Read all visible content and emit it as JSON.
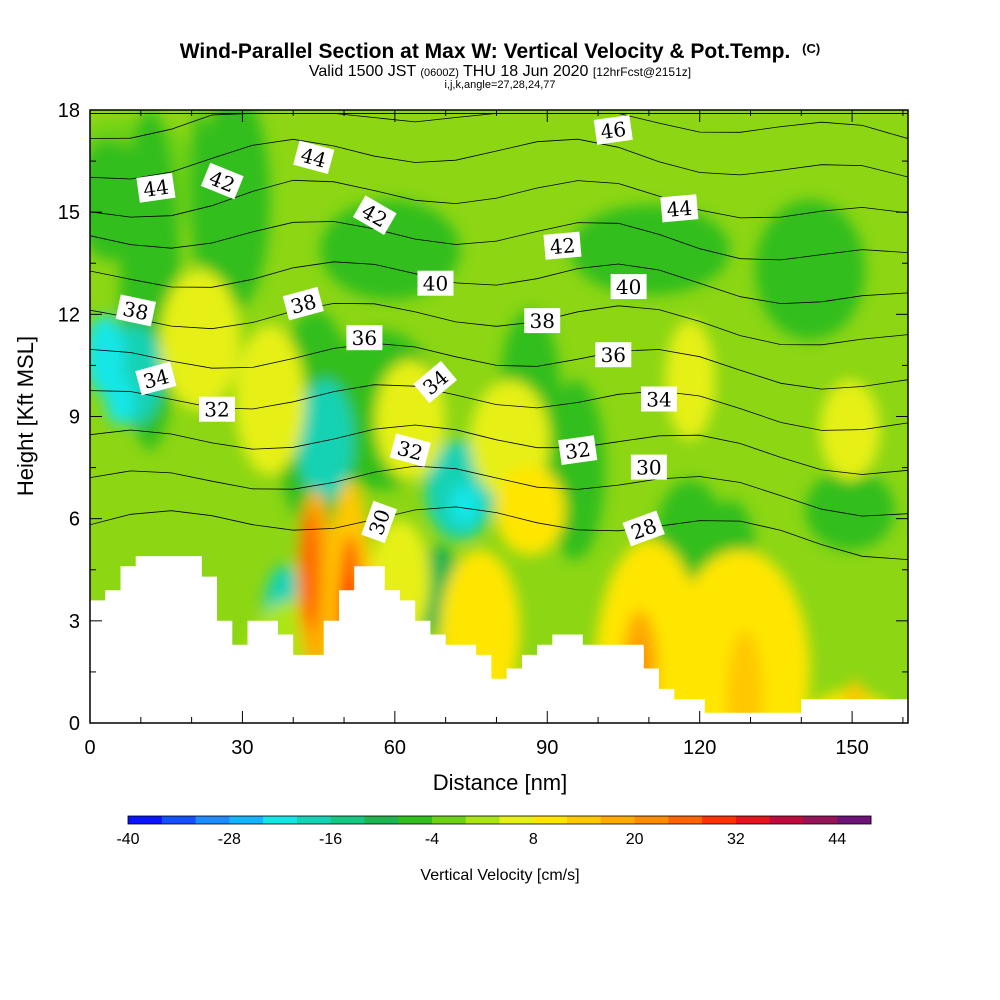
{
  "title": "Wind-Parallel Section at Max W: Vertical Velocity & Pot.Temp.",
  "copyright": "(C)",
  "subtitle": {
    "prefix": "Valid 1500 JST",
    "utc": "(0600Z)",
    "date": "THU 18 Jun 2020",
    "fcst": "[12hrFcst@2151z]",
    "grid": "i,j,k,angle=27,28,24,77"
  },
  "chart_data": {
    "type": "heatmap",
    "title": "Wind-Parallel Section at Max W: Vertical Velocity & Pot.Temp.",
    "xlabel": "Distance [nm]",
    "ylabel": "Height [Kft MSL]",
    "xlim": [
      0,
      161
    ],
    "ylim": [
      0,
      18
    ],
    "x_ticks": [
      0,
      30,
      60,
      90,
      120,
      150
    ],
    "y_ticks": [
      0,
      3,
      6,
      9,
      12,
      15,
      18
    ],
    "colorbar": {
      "label": "Vertical Velocity [cm/s]",
      "min": -40,
      "max": 48,
      "step": 4,
      "tick_values": [
        -40,
        -28,
        -16,
        -4,
        8,
        20,
        32,
        44
      ],
      "colors": [
        "#0a14ff",
        "#1450ff",
        "#1e8cff",
        "#14b4ff",
        "#14e6e6",
        "#14d2b4",
        "#14c882",
        "#1eb450",
        "#32be1e",
        "#6ed214",
        "#aae614",
        "#e6f014",
        "#ffe600",
        "#ffc800",
        "#ffaa00",
        "#ff8c00",
        "#ff6400",
        "#ff3200",
        "#e6141e",
        "#be0a3c",
        "#96145a",
        "#6e1478"
      ]
    },
    "terrain": [
      [
        0,
        3.6
      ],
      [
        3,
        3.6
      ],
      [
        3,
        3.9
      ],
      [
        6,
        3.9
      ],
      [
        6,
        4.6
      ],
      [
        9,
        4.6
      ],
      [
        9,
        4.9
      ],
      [
        22,
        4.9
      ],
      [
        22,
        4.3
      ],
      [
        25,
        4.3
      ],
      [
        25,
        3.0
      ],
      [
        28,
        3.0
      ],
      [
        28,
        2.3
      ],
      [
        31,
        2.3
      ],
      [
        31,
        3.0
      ],
      [
        37,
        3.0
      ],
      [
        37,
        2.6
      ],
      [
        40,
        2.6
      ],
      [
        40,
        2.0
      ],
      [
        46,
        2.0
      ],
      [
        46,
        3.0
      ],
      [
        49,
        3.0
      ],
      [
        49,
        3.9
      ],
      [
        52,
        3.9
      ],
      [
        52,
        4.6
      ],
      [
        58,
        4.6
      ],
      [
        58,
        3.9
      ],
      [
        61,
        3.9
      ],
      [
        61,
        3.6
      ],
      [
        64,
        3.6
      ],
      [
        64,
        3.0
      ],
      [
        67,
        3.0
      ],
      [
        67,
        2.6
      ],
      [
        70,
        2.6
      ],
      [
        70,
        2.3
      ],
      [
        76,
        2.3
      ],
      [
        76,
        2.0
      ],
      [
        79,
        2.0
      ],
      [
        79,
        1.3
      ],
      [
        82,
        1.3
      ],
      [
        82,
        1.6
      ],
      [
        85,
        1.6
      ],
      [
        85,
        2.0
      ],
      [
        88,
        2.0
      ],
      [
        88,
        2.3
      ],
      [
        91,
        2.3
      ],
      [
        91,
        2.6
      ],
      [
        97,
        2.6
      ],
      [
        97,
        2.3
      ],
      [
        109,
        2.3
      ],
      [
        109,
        1.6
      ],
      [
        112,
        1.6
      ],
      [
        112,
        1.0
      ],
      [
        115,
        1.0
      ],
      [
        115,
        0.7
      ],
      [
        121,
        0.7
      ],
      [
        121,
        0.3
      ],
      [
        140,
        0.3
      ],
      [
        140,
        0.7
      ],
      [
        161,
        0.7
      ]
    ],
    "contour_labels": [
      {
        "text": "46",
        "x": 103,
        "y": 17.4,
        "angle": -8
      },
      {
        "text": "44",
        "x": 13,
        "y": 15.7,
        "angle": -8
      },
      {
        "text": "42",
        "x": 26,
        "y": 15.9,
        "angle": 22
      },
      {
        "text": "44",
        "x": 44,
        "y": 16.6,
        "angle": 15
      },
      {
        "text": "42",
        "x": 56,
        "y": 14.9,
        "angle": 30
      },
      {
        "text": "44",
        "x": 116,
        "y": 15.1,
        "angle": -5
      },
      {
        "text": "42",
        "x": 93,
        "y": 14.0,
        "angle": -5
      },
      {
        "text": "40",
        "x": 68,
        "y": 12.9,
        "angle": 0
      },
      {
        "text": "40",
        "x": 106,
        "y": 12.8,
        "angle": 0
      },
      {
        "text": "38",
        "x": 9,
        "y": 12.1,
        "angle": 12
      },
      {
        "text": "38",
        "x": 42,
        "y": 12.3,
        "angle": -15
      },
      {
        "text": "38",
        "x": 89,
        "y": 11.8,
        "angle": 0
      },
      {
        "text": "36",
        "x": 54,
        "y": 11.3,
        "angle": 0
      },
      {
        "text": "36",
        "x": 103,
        "y": 10.8,
        "angle": 0
      },
      {
        "text": "34",
        "x": 13,
        "y": 10.1,
        "angle": -15
      },
      {
        "text": "34",
        "x": 68,
        "y": 10.0,
        "angle": -40
      },
      {
        "text": "34",
        "x": 112,
        "y": 9.5,
        "angle": 0
      },
      {
        "text": "32",
        "x": 25,
        "y": 9.2,
        "angle": 0
      },
      {
        "text": "32",
        "x": 63,
        "y": 8.0,
        "angle": 15
      },
      {
        "text": "32",
        "x": 96,
        "y": 8.0,
        "angle": -8
      },
      {
        "text": "30",
        "x": 110,
        "y": 7.5,
        "angle": 0
      },
      {
        "text": "30",
        "x": 57,
        "y": 5.9,
        "angle": -70
      },
      {
        "text": "28",
        "x": 109,
        "y": 5.7,
        "angle": -20
      }
    ],
    "contour_levels": [
      28,
      30,
      32,
      34,
      36,
      38,
      40,
      42,
      44,
      46
    ]
  }
}
